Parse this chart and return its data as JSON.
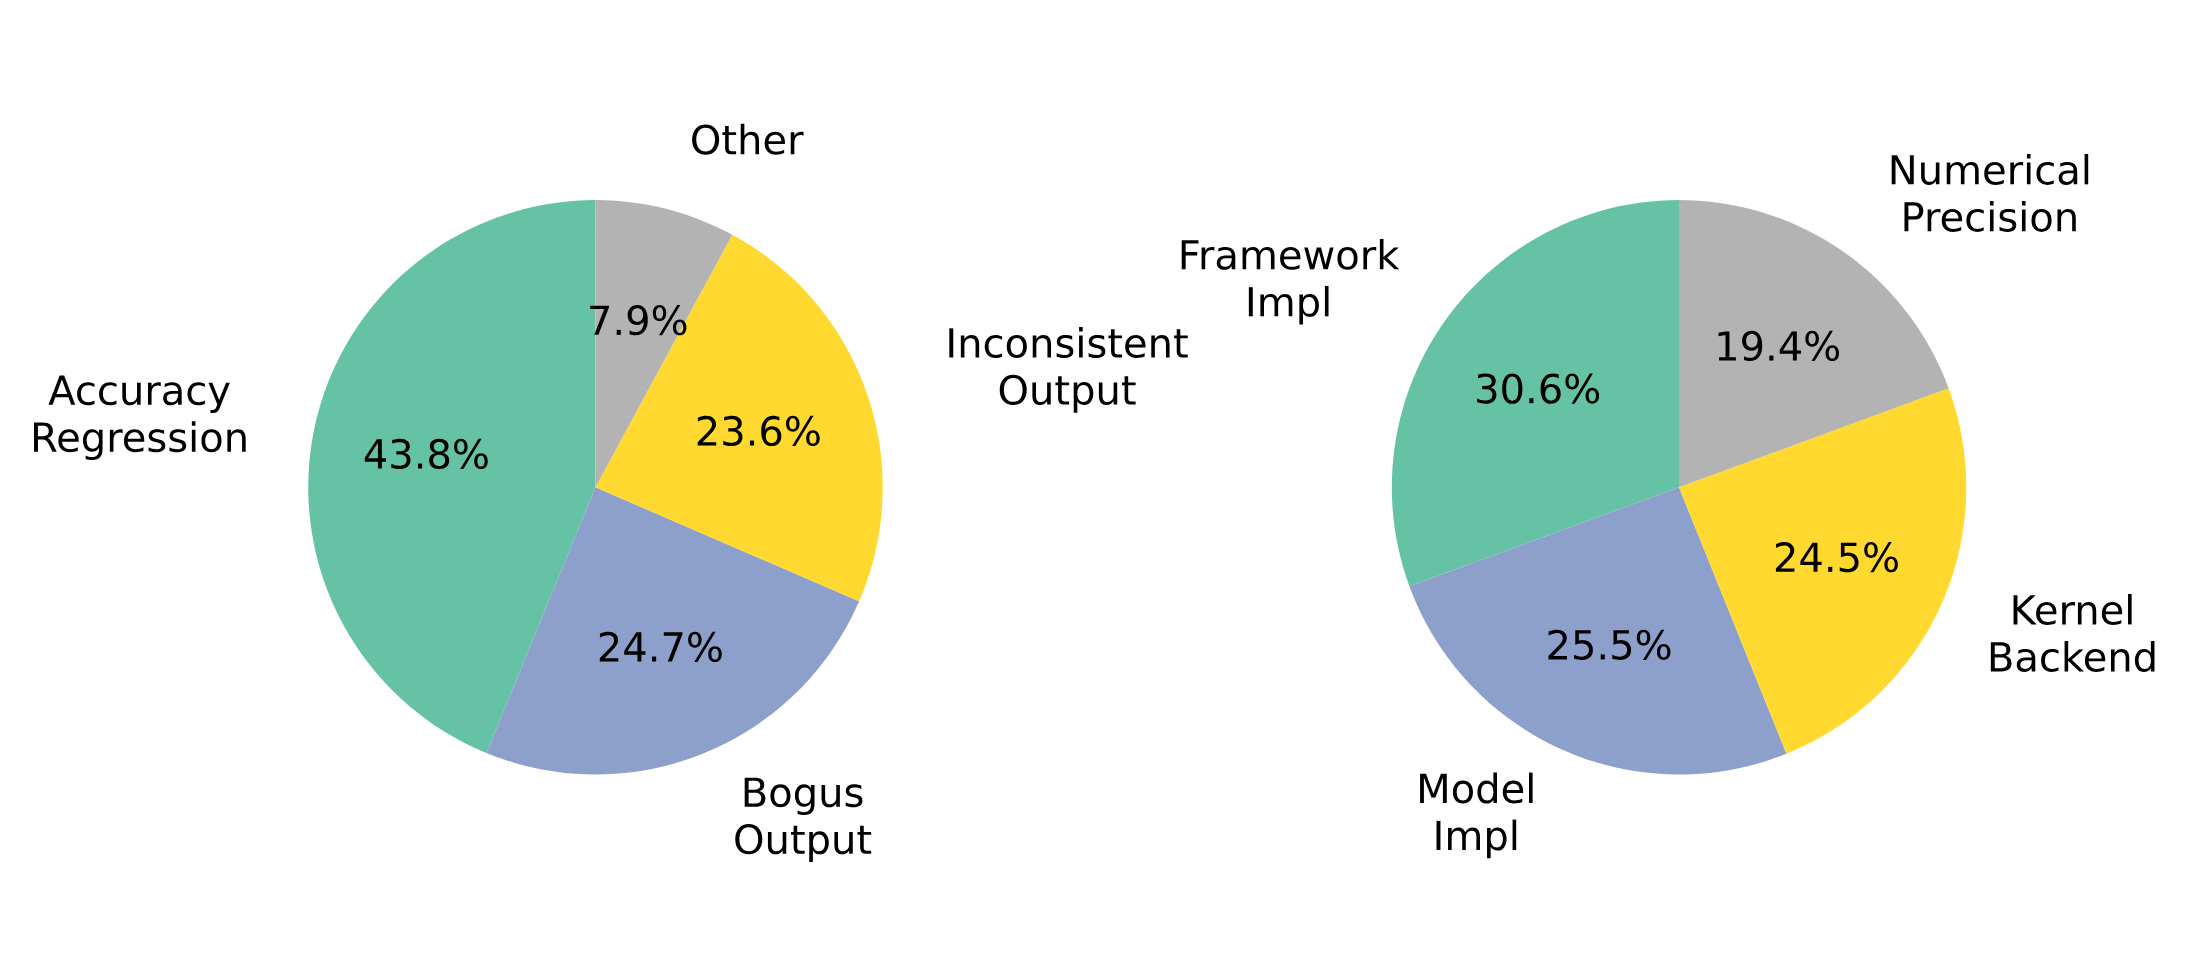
{
  "chart_data": [
    {
      "type": "pie",
      "categories": [
        "Accuracy Regression",
        "Bogus Output",
        "Inconsistent Output",
        "Other"
      ],
      "values": [
        43.8,
        24.7,
        23.6,
        7.9
      ],
      "value_labels": [
        "43.8%",
        "24.7%",
        "23.6%",
        "7.9%"
      ],
      "colors": [
        "#66c2a5",
        "#8da0cb",
        "#ffd92f",
        "#b3b3b3"
      ]
    },
    {
      "type": "pie",
      "categories": [
        "Framework Impl",
        "Model Impl",
        "Kernel Backend",
        "Numerical Precision"
      ],
      "values": [
        30.6,
        25.5,
        24.5,
        19.4
      ],
      "value_labels": [
        "30.6%",
        "25.5%",
        "24.5%",
        "19.4%"
      ],
      "colors": [
        "#66c2a5",
        "#8da0cb",
        "#ffd92f",
        "#b3b3b3"
      ]
    }
  ]
}
